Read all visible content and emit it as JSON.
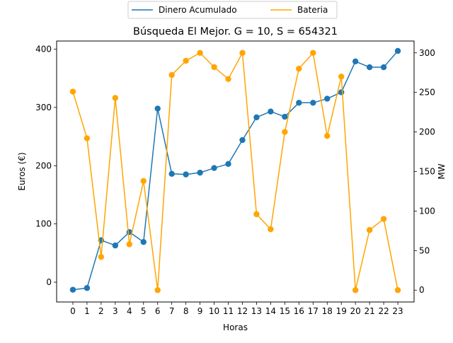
{
  "chart_data": {
    "type": "line",
    "title": "Búsqueda El Mejor. G = 10, S = 654321",
    "xlabel": "Horas",
    "ylabel_left": "Euros (€)",
    "ylabel_right": "MW",
    "x": [
      0,
      1,
      2,
      3,
      4,
      5,
      6,
      7,
      8,
      9,
      10,
      11,
      12,
      13,
      14,
      15,
      16,
      17,
      18,
      19,
      20,
      21,
      22,
      23
    ],
    "x_tick_labels": [
      "0",
      "1",
      "2",
      "3",
      "4",
      "5",
      "6",
      "7",
      "8",
      "9",
      "10",
      "11",
      "12",
      "13",
      "14",
      "15",
      "16",
      "17",
      "18",
      "19",
      "20",
      "21",
      "22",
      "23"
    ],
    "y_left_ticks": [
      0,
      100,
      200,
      300,
      400
    ],
    "y_left_tick_labels": [
      "0",
      "100",
      "200",
      "300",
      "400"
    ],
    "y_right_ticks": [
      0,
      50,
      100,
      150,
      200,
      250,
      300
    ],
    "y_right_tick_labels": [
      "0",
      "50",
      "100",
      "150",
      "200",
      "250",
      "300"
    ],
    "y_left_range": [
      -34,
      414
    ],
    "y_right_range": [
      -15,
      315
    ],
    "x_range": [
      -1.15,
      24.15
    ],
    "grid": false,
    "legend_position": "top-center-outside",
    "series": [
      {
        "name": "Dinero Acumulado",
        "axis": "left",
        "color": "#1f77b4",
        "values": [
          -13,
          -10,
          72,
          63,
          86,
          69,
          298,
          186,
          185,
          188,
          196,
          203,
          244,
          283,
          293,
          284,
          308,
          308,
          315,
          326,
          379,
          369,
          369,
          397
        ]
      },
      {
        "name": "Bateria",
        "axis": "right",
        "color": "#ffa500",
        "values": [
          251,
          192,
          42,
          243,
          58,
          138,
          0,
          272,
          290,
          300,
          282,
          267,
          300,
          96,
          77,
          200,
          280,
          300,
          195,
          270,
          0,
          76,
          90,
          0
        ]
      }
    ]
  }
}
